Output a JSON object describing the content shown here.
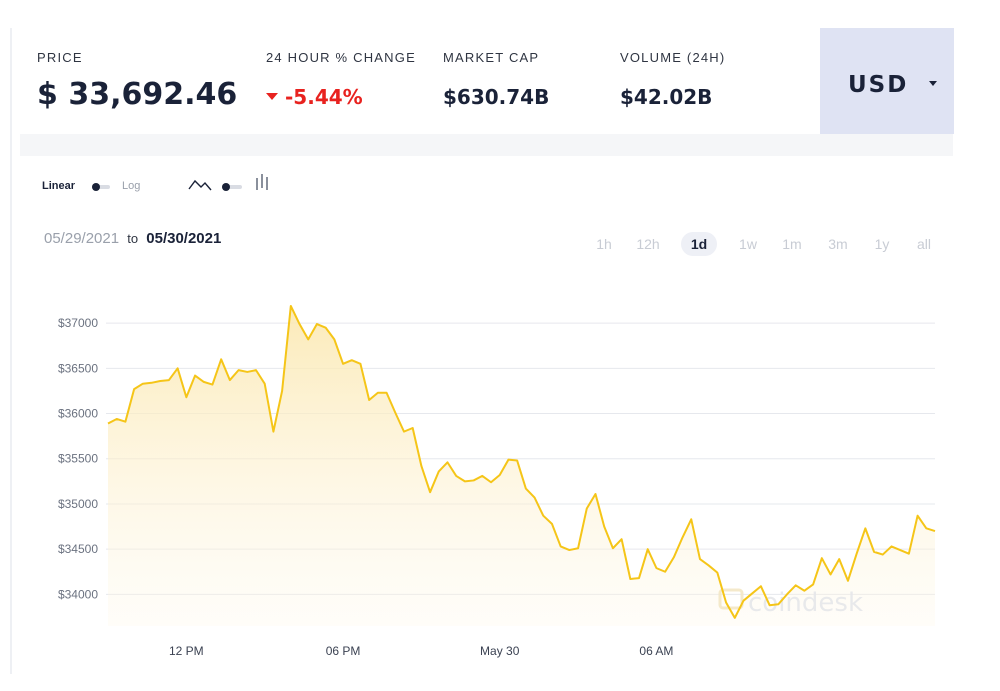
{
  "stats": {
    "price_label": "PRICE",
    "price_value": "$ 33,692.46",
    "change_label": "24 HOUR % CHANGE",
    "change_value": "-5.44%",
    "market_cap_label": "MARKET CAP",
    "market_cap_value": "$630.74B",
    "volume_label": "VOLUME (24H)",
    "volume_value": "$42.02B"
  },
  "currency": {
    "selected": "USD"
  },
  "colors": {
    "negative": "#e8221f",
    "line": "#f5c518",
    "accent_panel": "#dfe3f3"
  },
  "toggles": {
    "scale_linear": "Linear",
    "scale_log": "Log",
    "chart_style_icons": [
      "line-chart-icon",
      "candlestick-icon"
    ]
  },
  "date_range": {
    "start": "05/29/2021",
    "to": "to",
    "end": "05/30/2021"
  },
  "ranges": [
    "1h",
    "12h",
    "1d",
    "1w",
    "1m",
    "3m",
    "1y",
    "all"
  ],
  "active_range": "1d",
  "watermark": "coindesk",
  "chart_data": {
    "type": "area",
    "ylabels": [
      "$34000",
      "$34500",
      "$35000",
      "$35500",
      "$36000",
      "$36500",
      "$37000"
    ],
    "y_ticks": [
      34000,
      34500,
      35000,
      35500,
      36000,
      36500,
      37000
    ],
    "xlabels": [
      "12 PM",
      "06 PM",
      "May 30",
      "06 AM"
    ],
    "x_tick_positions": [
      9,
      27,
      45,
      63
    ],
    "ylim": [
      33650,
      37300
    ],
    "grid": true,
    "series": [
      {
        "values": [
          35890,
          35940,
          35910,
          36270,
          36330,
          36340,
          36360,
          36370,
          36500,
          36180,
          36420,
          36350,
          36320,
          36600,
          36370,
          36480,
          36460,
          36480,
          36330,
          35800,
          36250,
          37190,
          36990,
          36820,
          36990,
          36950,
          36820,
          36550,
          36590,
          36550,
          36150,
          36230,
          36230,
          36010,
          35800,
          35840,
          35420,
          35130,
          35360,
          35460,
          35310,
          35250,
          35260,
          35310,
          35240,
          35320,
          35490,
          35480,
          35170,
          35070,
          34870,
          34780,
          34530,
          34490,
          34510,
          34950,
          35110,
          34750,
          34510,
          34610,
          34170,
          34180,
          34500,
          34290,
          34250,
          34410,
          34630,
          34830,
          34390,
          34320,
          34240,
          33910,
          33740,
          33930,
          34010,
          34090,
          33880,
          33890,
          34000,
          34100,
          34040,
          34110,
          34400,
          34220,
          34390,
          34150,
          34450,
          34730,
          34470,
          34440,
          34530,
          34490,
          34450,
          34870,
          34730,
          34700
        ]
      }
    ]
  }
}
